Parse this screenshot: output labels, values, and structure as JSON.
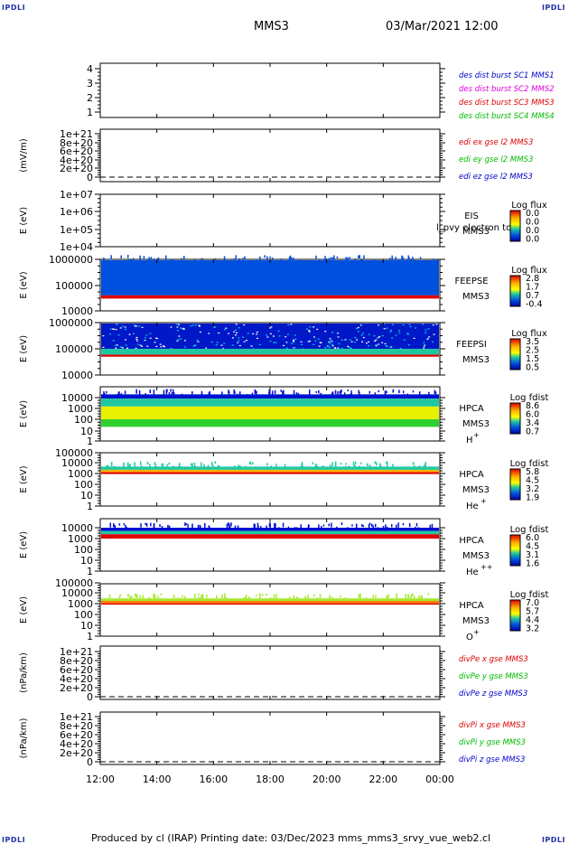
{
  "corner_label": "IPDLI",
  "header": {
    "mission": "MMS3",
    "datetime": "03/Mar/2021 12:00"
  },
  "footer": {
    "text": "Produced by cl (IRAP)   Printing date: 03/Dec/2023   mms_mms3_srvy_vue_web2.cl"
  },
  "time_axis": [
    "12:00",
    "14:00",
    "16:00",
    "18:00",
    "20:00",
    "22:00",
    "00:00"
  ],
  "colors": {
    "red": "#e00000",
    "green": "#00bb00",
    "blue": "#0000cc",
    "magenta": "#dd00dd"
  },
  "chart_data": [
    {
      "type": "line",
      "name": "spacecraft",
      "ylabel": "",
      "yticks": [
        "1",
        "2",
        "3",
        "4"
      ],
      "ylim": [
        0.7,
        4.3
      ],
      "legend": [
        {
          "text": "des dist burst SC1 MMS1",
          "color": "#0000cc"
        },
        {
          "text": "des dist burst SC2 MMS2",
          "color": "#dd00dd"
        },
        {
          "text": "des dist burst SC3 MMS3",
          "color": "#e00000"
        },
        {
          "text": "des dist burst SC4 MMS4",
          "color": "#00bb00"
        }
      ],
      "series": []
    },
    {
      "type": "line",
      "name": "edi-electric-field",
      "ylabel": "(mV/m)",
      "yticks": [
        "0",
        "2e+20",
        "4e+20",
        "6e+20",
        "8e+20",
        "1e+21"
      ],
      "ylim": [
        -0.1,
        1.05
      ],
      "legend": [
        {
          "text": "edi ex gse l2 MMS3",
          "color": "#e00000"
        },
        {
          "text": "edi ey gse l2 MMS3",
          "color": "#00bb00"
        },
        {
          "text": "edi ez gse l2 MMS3",
          "color": "#0000cc"
        }
      ],
      "series": [],
      "zero_line": "dashed"
    },
    {
      "type": "heatmap",
      "name": "eis",
      "ylabel": "E (eV)",
      "yticks": [
        "1e+04",
        "1e+05",
        "1e+06",
        "1e+07"
      ],
      "instrument": "EIS",
      "overlay": "l_pvy electron to",
      "mms": "MMS3",
      "colorbar": {
        "title": "Log flux",
        "ticks": [
          "0.0",
          "0.0",
          "0.0",
          "0.0"
        ]
      },
      "data": "empty"
    },
    {
      "type": "heatmap",
      "name": "feepse",
      "ylabel": "E (eV)",
      "yticks": [
        "10000",
        "100000",
        "1000000"
      ],
      "instrument": "FEEPSE",
      "mms": "MMS3",
      "colorbar": {
        "title": "Log flux",
        "ticks": [
          "2.8",
          "1.7",
          "0.7",
          "-0.4"
        ]
      },
      "bands": [
        {
          "from": 1000000,
          "to": 40000,
          "level": "blue-cyan"
        },
        {
          "from": 40000,
          "to": 30000,
          "level": "red"
        }
      ]
    },
    {
      "type": "heatmap",
      "name": "feepsi",
      "ylabel": "E (eV)",
      "yticks": [
        "10000",
        "100000",
        "1000000"
      ],
      "instrument": "FEEPSI",
      "mms": "MMS3",
      "colorbar": {
        "title": "Log flux",
        "ticks": [
          "3.5",
          "2.5",
          "1.5",
          "0.5"
        ]
      },
      "bands": [
        {
          "from": 1000000,
          "to": 100000,
          "level": "blue-speckle"
        },
        {
          "from": 100000,
          "to": 60000,
          "level": "cyan-green"
        },
        {
          "from": 60000,
          "to": 50000,
          "level": "red"
        }
      ]
    },
    {
      "type": "heatmap",
      "name": "hpca-h",
      "ylabel": "E (eV)",
      "yticks": [
        "1",
        "10",
        "100",
        "1000",
        "10000"
      ],
      "instrument": "HPCA",
      "mms": "MMS3",
      "species": "H",
      "charge": "+",
      "colorbar": {
        "title": "Log fdist",
        "ticks": [
          "8.6",
          "6.0",
          "3.4",
          "0.7"
        ]
      },
      "bands": [
        {
          "from": 20000,
          "to": 8000,
          "level": "blue"
        },
        {
          "from": 8000,
          "to": 1500,
          "level": "cyan-green"
        },
        {
          "from": 1500,
          "to": 100,
          "level": "yellow"
        },
        {
          "from": 100,
          "to": 20,
          "level": "green"
        }
      ]
    },
    {
      "type": "heatmap",
      "name": "hpca-he-plus",
      "ylabel": "E (eV)",
      "yticks": [
        "1",
        "10",
        "100",
        "1000",
        "10000",
        "100000"
      ],
      "instrument": "HPCA",
      "mms": "MMS3",
      "species": "He",
      "charge": "+",
      "colorbar": {
        "title": "Log fdist",
        "ticks": [
          "5.8",
          "4.5",
          "3.2",
          "1.9"
        ]
      },
      "bands": [
        {
          "from": 5000,
          "to": 2500,
          "level": "cyan-green"
        },
        {
          "from": 2500,
          "to": 1500,
          "level": "yellow-orange"
        },
        {
          "from": 1500,
          "to": 1000,
          "level": "red"
        }
      ]
    },
    {
      "type": "heatmap",
      "name": "hpca-he-plus-plus",
      "ylabel": "E (eV)",
      "yticks": [
        "1",
        "10",
        "100",
        "1000",
        "10000"
      ],
      "instrument": "HPCA",
      "mms": "MMS3",
      "species": "He",
      "charge": "++",
      "colorbar": {
        "title": "Log fdist",
        "ticks": [
          "6.0",
          "4.5",
          "3.1",
          "1.6"
        ]
      },
      "bands": [
        {
          "from": 10000,
          "to": 5000,
          "level": "blue"
        },
        {
          "from": 5000,
          "to": 2500,
          "level": "cyan-green"
        },
        {
          "from": 2500,
          "to": 1000,
          "level": "red"
        }
      ]
    },
    {
      "type": "heatmap",
      "name": "hpca-o-plus",
      "ylabel": "E (eV)",
      "yticks": [
        "1",
        "10",
        "100",
        "1000",
        "10000",
        "100000"
      ],
      "instrument": "HPCA",
      "mms": "MMS3",
      "species": "O",
      "charge": "+",
      "colorbar": {
        "title": "Log fdist",
        "ticks": [
          "7.0",
          "5.7",
          "4.4",
          "3.2"
        ]
      },
      "bands": [
        {
          "from": 3500,
          "to": 2000,
          "level": "green-yellow"
        },
        {
          "from": 2000,
          "to": 1200,
          "level": "orange"
        },
        {
          "from": 1200,
          "to": 900,
          "level": "red"
        }
      ]
    },
    {
      "type": "line",
      "name": "divpe",
      "ylabel": "(nPa/km)",
      "yticks": [
        "0",
        "2e+20",
        "4e+20",
        "6e+20",
        "8e+20",
        "1e+21"
      ],
      "ylim": [
        -0.1,
        1.05
      ],
      "legend": [
        {
          "text": "divPe x gse MMS3",
          "color": "#e00000"
        },
        {
          "text": "divPe y gse MMS3",
          "color": "#00bb00"
        },
        {
          "text": "divPe z gse MMS3",
          "color": "#0000cc"
        }
      ],
      "series": [],
      "zero_line": "dashed"
    },
    {
      "type": "line",
      "name": "divpi",
      "ylabel": "(nPa/km)",
      "yticks": [
        "0",
        "2e+20",
        "4e+20",
        "6e+20",
        "8e+20",
        "1e+21"
      ],
      "ylim": [
        -0.1,
        1.05
      ],
      "legend": [
        {
          "text": "divPi x gse MMS3",
          "color": "#e00000"
        },
        {
          "text": "divPi y gse MMS3",
          "color": "#00bb00"
        },
        {
          "text": "divPi z gse MMS3",
          "color": "#0000cc"
        }
      ],
      "series": [],
      "zero_line": "dashed"
    }
  ]
}
